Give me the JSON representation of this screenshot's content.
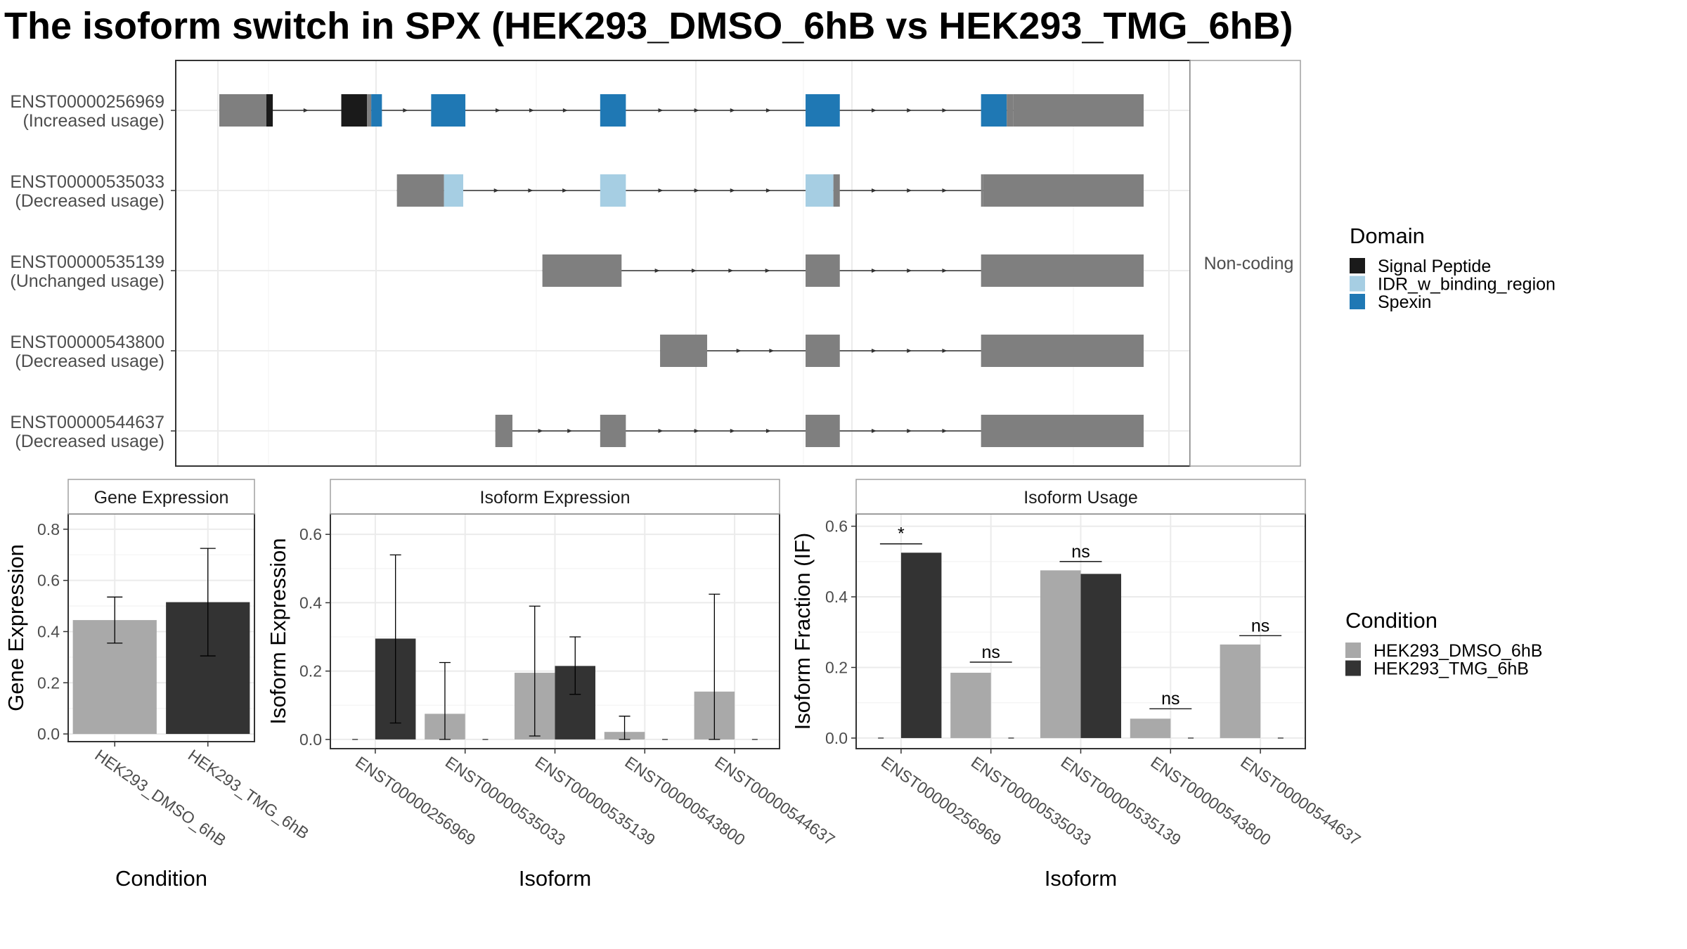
{
  "title": "The isoform switch in SPX (HEK293_DMSO_6hB vs HEK293_TMG_6hB)",
  "colors": {
    "signal_peptide": "#1a1a1a",
    "idr": "#a6cee3",
    "spexin": "#1f78b4",
    "exon": "#7f7f7f",
    "dmso": "#a9a9a9",
    "tmg": "#333333",
    "panel_border": "#333333",
    "strip_border": "#a0a0a0",
    "strip_fill": "#ffffff"
  },
  "transcript_panel": {
    "facet_label": "Non-coding",
    "tracks": [
      {
        "id": "ENST00000256969",
        "usage": "(Increased usage)",
        "segments": [
          {
            "start": 0,
            "end": 1.1,
            "feature": "exon"
          },
          {
            "start": 1.1,
            "end": 1.25,
            "feature": "signal_peptide"
          },
          {
            "start": 2.85,
            "end": 3.45,
            "feature": "signal_peptide"
          },
          {
            "start": 3.45,
            "end": 3.55,
            "feature": "exon"
          },
          {
            "start": 3.55,
            "end": 3.8,
            "feature": "spexin"
          },
          {
            "start": 4.95,
            "end": 5.75,
            "feature": "spexin"
          },
          {
            "start": 8.9,
            "end": 9.5,
            "feature": "spexin"
          },
          {
            "start": 13.7,
            "end": 14.5,
            "feature": "spexin"
          },
          {
            "start": 17.8,
            "end": 18.4,
            "feature": "spexin"
          },
          {
            "start": 18.4,
            "end": 18.55,
            "feature": "exon"
          },
          {
            "start": 18.55,
            "end": 21.6,
            "feature": "exon"
          }
        ]
      },
      {
        "id": "ENST00000535033",
        "usage": "(Decreased usage)",
        "segments": [
          {
            "start": 4.15,
            "end": 5.25,
            "feature": "exon"
          },
          {
            "start": 5.25,
            "end": 5.7,
            "feature": "idr"
          },
          {
            "start": 8.9,
            "end": 9.5,
            "feature": "idr"
          },
          {
            "start": 13.7,
            "end": 14.35,
            "feature": "idr"
          },
          {
            "start": 14.35,
            "end": 14.5,
            "feature": "exon"
          },
          {
            "start": 17.8,
            "end": 17.85,
            "feature": "exon"
          },
          {
            "start": 17.85,
            "end": 21.6,
            "feature": "exon"
          }
        ]
      },
      {
        "id": "ENST00000535139",
        "usage": "(Unchanged usage)",
        "segments": [
          {
            "start": 7.55,
            "end": 9.4,
            "feature": "exon"
          },
          {
            "start": 13.7,
            "end": 14.5,
            "feature": "exon"
          },
          {
            "start": 17.8,
            "end": 21.6,
            "feature": "exon"
          }
        ]
      },
      {
        "id": "ENST00000543800",
        "usage": "(Decreased usage)",
        "segments": [
          {
            "start": 10.3,
            "end": 11.4,
            "feature": "exon"
          },
          {
            "start": 13.7,
            "end": 14.5,
            "feature": "exon"
          },
          {
            "start": 17.8,
            "end": 21.6,
            "feature": "exon"
          }
        ]
      },
      {
        "id": "ENST00000544637",
        "usage": "(Decreased usage)",
        "segments": [
          {
            "start": 6.45,
            "end": 6.85,
            "feature": "exon"
          },
          {
            "start": 8.9,
            "end": 9.5,
            "feature": "exon"
          },
          {
            "start": 13.7,
            "end": 14.5,
            "feature": "exon"
          },
          {
            "start": 17.8,
            "end": 21.6,
            "feature": "exon"
          }
        ]
      }
    ]
  },
  "legend_domain": {
    "title": "Domain",
    "items": [
      {
        "label": "Signal Peptide",
        "color": "#1a1a1a"
      },
      {
        "label": "IDR_w_binding_region",
        "color": "#a6cee3"
      },
      {
        "label": "Spexin",
        "color": "#1f78b4"
      }
    ]
  },
  "legend_condition": {
    "title": "Condition",
    "items": [
      {
        "label": "HEK293_DMSO_6hB",
        "color": "#a9a9a9"
      },
      {
        "label": "HEK293_TMG_6hB",
        "color": "#333333"
      }
    ]
  },
  "chart_data": [
    {
      "type": "bar",
      "title": "Gene Expression",
      "xlabel": "Condition",
      "ylabel": "Gene Expression",
      "ylim": [
        -0.03,
        0.86
      ],
      "yticks": [
        0.0,
        0.2,
        0.4,
        0.6,
        0.8
      ],
      "ytick_labels": [
        "0.0",
        "0.2",
        "0.4",
        "0.6",
        "0.8"
      ],
      "categories": [
        "HEK293_DMSO_6hB",
        "HEK293_TMG_6hB"
      ],
      "values": [
        0.445,
        0.515
      ],
      "errors": [
        [
          0.355,
          0.535
        ],
        [
          0.305,
          0.725
        ]
      ],
      "colors": [
        "#a9a9a9",
        "#333333"
      ]
    },
    {
      "type": "bar",
      "title": "Isoform Expression",
      "xlabel": "Isoform",
      "ylabel": "Isoform Expression",
      "ylim": [
        -0.027,
        0.66
      ],
      "yticks": [
        0.0,
        0.2,
        0.4,
        0.6
      ],
      "ytick_labels": [
        "0.0",
        "0.2",
        "0.4",
        "0.6"
      ],
      "categories": [
        "ENST00000256969",
        "ENST00000535033",
        "ENST00000535139",
        "ENST00000543800",
        "ENST00000544637"
      ],
      "series": [
        {
          "name": "HEK293_DMSO_6hB",
          "color": "#a9a9a9",
          "values": [
            0.0,
            0.075,
            0.195,
            0.022,
            0.14
          ],
          "errors": [
            [
              0.0,
              0.0
            ],
            [
              0.0,
              0.225
            ],
            [
              0.01,
              0.39
            ],
            [
              0.0,
              0.068
            ],
            [
              0.0,
              0.425
            ]
          ]
        },
        {
          "name": "HEK293_TMG_6hB",
          "color": "#333333",
          "values": [
            0.295,
            0.0,
            0.215,
            0.0,
            0.0
          ],
          "errors": [
            [
              0.048,
              0.54
            ],
            [
              0.0,
              0.0
            ],
            [
              0.132,
              0.3
            ],
            [
              0.0,
              0.0
            ],
            [
              0.0,
              0.0
            ]
          ]
        }
      ]
    },
    {
      "type": "bar",
      "title": "Isoform Usage",
      "xlabel": "Isoform",
      "ylabel": "Isoform Fraction (IF)",
      "ylim": [
        -0.03,
        0.635
      ],
      "yticks": [
        0.0,
        0.2,
        0.4,
        0.6
      ],
      "ytick_labels": [
        "0.0",
        "0.2",
        "0.4",
        "0.6"
      ],
      "categories": [
        "ENST00000256969",
        "ENST00000535033",
        "ENST00000535139",
        "ENST00000543800",
        "ENST00000544637"
      ],
      "series": [
        {
          "name": "HEK293_DMSO_6hB",
          "color": "#a9a9a9",
          "values": [
            0.0,
            0.185,
            0.475,
            0.055,
            0.265
          ]
        },
        {
          "name": "HEK293_TMG_6hB",
          "color": "#333333",
          "values": [
            0.525,
            0.0,
            0.465,
            0.0,
            0.0
          ]
        }
      ],
      "significance": [
        {
          "category": "ENST00000256969",
          "label": "*",
          "y": 0.55
        },
        {
          "category": "ENST00000535033",
          "label": "ns",
          "y": 0.215
        },
        {
          "category": "ENST00000535139",
          "label": "ns",
          "y": 0.5
        },
        {
          "category": "ENST00000543800",
          "label": "ns",
          "y": 0.083
        },
        {
          "category": "ENST00000544637",
          "label": "ns",
          "y": 0.29
        }
      ]
    }
  ]
}
